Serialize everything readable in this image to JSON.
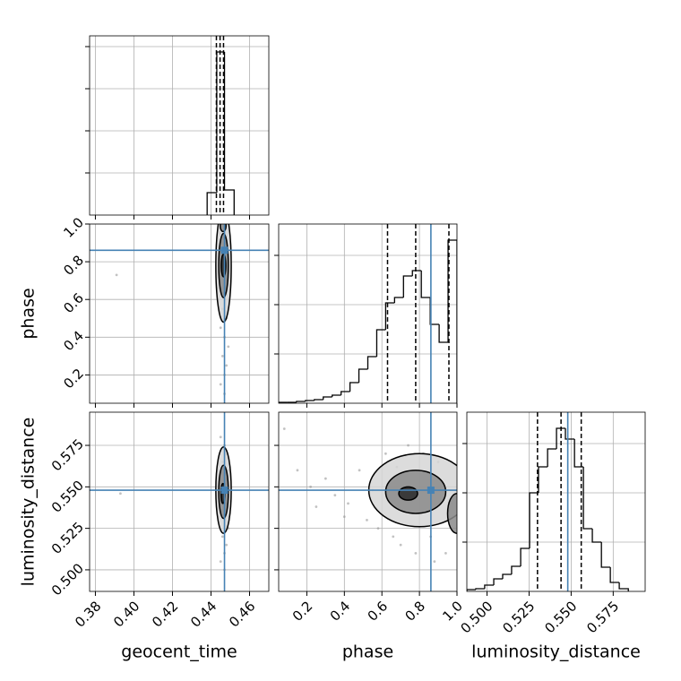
{
  "chart_data": [
    {
      "type": "histogram",
      "bins": [
        0.438,
        0.443,
        0.447,
        0.452
      ],
      "counts": [
        25,
        182,
        28
      ],
      "xlim": [
        0.377,
        0.47
      ],
      "ylim": [
        0,
        200
      ],
      "xticks": [
        0.38,
        {
          "value": 0.4,
          "label": "0.40"
        },
        0.42,
        0.44,
        0.46
      ],
      "yticks": [
        47,
        94,
        141,
        188
      ],
      "quantiles": [
        0.4428,
        0.4447,
        0.4465
      ],
      "grid": true,
      "color": "#000000"
    },
    {
      "type": "scatter",
      "xlim": [
        0.377,
        0.47
      ],
      "ylim": [
        0.05,
        1.0
      ],
      "xticks": [
        0.38,
        {
          "value": 0.4,
          "label": "0.40"
        },
        0.42,
        0.44,
        0.46
      ],
      "yticks": [
        0.2,
        0.4,
        0.6,
        0.8,
        {
          "value": 1,
          "label": "1.0"
        }
      ],
      "ylabel": "phase",
      "x": [
        0.445,
        0.447,
        0.448,
        0.446,
        0.449,
        0.444,
        0.447,
        0.446,
        0.448,
        0.445,
        0.447,
        0.449,
        0.446,
        0.448,
        0.447,
        0.445,
        0.446,
        0.448,
        0.391,
        0.447
      ],
      "y": [
        0.95,
        0.88,
        0.82,
        0.76,
        0.7,
        0.66,
        0.6,
        0.55,
        0.5,
        0.45,
        0.4,
        0.35,
        0.3,
        0.25,
        0.2,
        0.15,
        0.72,
        0.91,
        0.73,
        0.1
      ],
      "contours": [
        {
          "cx": 0.4465,
          "cy": 0.78,
          "rx": 0.004,
          "ry": 0.3
        },
        {
          "cx": 0.4465,
          "cy": 0.78,
          "rx": 0.0025,
          "ry": 0.17
        },
        {
          "cx": 0.4465,
          "cy": 0.78,
          "rx": 0.0012,
          "ry": 0.06
        },
        {
          "cx": 0.4463,
          "cy": 0.99,
          "rx": 0.0015,
          "ry": 0.03
        }
      ],
      "truth_x": 0.447,
      "truth_y": 0.861,
      "grid": true,
      "color": "#9a9a9a",
      "truth_color": "#4682b4"
    },
    {
      "type": "histogram",
      "bins": [
        0.05,
        0.0975,
        0.145,
        0.1925,
        0.24,
        0.2875,
        0.335,
        0.3825,
        0.43,
        0.4775,
        0.525,
        0.5725,
        0.62,
        0.6675,
        0.715,
        0.7625,
        0.81,
        0.8575,
        0.905,
        0.9525,
        1.0
      ],
      "counts": [
        1,
        1,
        2,
        3,
        4,
        7,
        9,
        13,
        23,
        38,
        52,
        82,
        112,
        118,
        142,
        148,
        118,
        88,
        68,
        182
      ],
      "xlim": [
        0.05,
        1.0
      ],
      "ylim": [
        0,
        200
      ],
      "xticks": [
        0.2,
        0.4,
        0.6,
        0.8,
        {
          "value": 1,
          "label": "1.0"
        }
      ],
      "yticks": [
        55,
        110,
        165
      ],
      "quantiles": [
        0.63,
        0.78,
        0.957
      ],
      "truth": 0.861,
      "grid": true,
      "color": "#000000",
      "truth_color": "#4682b4"
    },
    {
      "type": "scatter",
      "xlim": [
        0.377,
        0.47
      ],
      "ylim": [
        0.487,
        0.595
      ],
      "xticks": [
        0.38,
        {
          "value": 0.4,
          "label": "0.40"
        },
        0.42,
        0.44,
        0.46
      ],
      "yticks": [
        {
          "value": 0.5,
          "label": "0.500"
        },
        0.525,
        {
          "value": 0.55,
          "label": "0.550"
        },
        0.575
      ],
      "xlabel": "geocent_time",
      "ylabel": "luminosity_distance",
      "x": [
        0.445,
        0.447,
        0.448,
        0.446,
        0.449,
        0.444,
        0.447,
        0.446,
        0.448,
        0.445,
        0.447,
        0.449,
        0.446,
        0.448,
        0.447,
        0.445,
        0.446,
        0.448,
        0.393,
        0.447
      ],
      "y": [
        0.58,
        0.575,
        0.57,
        0.565,
        0.56,
        0.555,
        0.55,
        0.545,
        0.54,
        0.535,
        0.53,
        0.525,
        0.52,
        0.515,
        0.51,
        0.505,
        0.548,
        0.552,
        0.546,
        0.5
      ],
      "contours": [
        {
          "cx": 0.4465,
          "cy": 0.548,
          "rx": 0.004,
          "ry": 0.026
        },
        {
          "cx": 0.4465,
          "cy": 0.547,
          "rx": 0.0025,
          "ry": 0.016
        },
        {
          "cx": 0.4462,
          "cy": 0.546,
          "rx": 0.001,
          "ry": 0.006
        }
      ],
      "truth_x": 0.447,
      "truth_y": 0.548,
      "grid": true,
      "color": "#9a9a9a",
      "truth_color": "#4682b4"
    },
    {
      "type": "scatter",
      "xlim": [
        0.05,
        1.0
      ],
      "ylim": [
        0.487,
        0.595
      ],
      "xticks": [
        0.2,
        0.4,
        0.6,
        0.8,
        {
          "value": 1,
          "label": "1.0"
        }
      ],
      "yticks": [
        {
          "value": 0.5,
          "label": "0.500"
        },
        0.525,
        {
          "value": 0.55,
          "label": "0.550"
        },
        0.575
      ],
      "xlabel": "phase",
      "x": [
        0.08,
        0.15,
        0.22,
        0.3,
        0.35,
        0.42,
        0.48,
        0.52,
        0.58,
        0.62,
        0.66,
        0.7,
        0.74,
        0.78,
        0.82,
        0.86,
        0.9,
        0.94,
        0.97,
        0.55,
        0.4,
        0.68,
        0.88,
        0.25
      ],
      "y": [
        0.585,
        0.56,
        0.55,
        0.555,
        0.545,
        0.54,
        0.56,
        0.53,
        0.525,
        0.57,
        0.52,
        0.515,
        0.575,
        0.51,
        0.57,
        0.52,
        0.565,
        0.51,
        0.54,
        0.548,
        0.532,
        0.562,
        0.505,
        0.538
      ],
      "contours": [
        {
          "cx": 0.8,
          "cy": 0.548,
          "rx": 0.27,
          "ry": 0.022
        },
        {
          "cx": 0.78,
          "cy": 0.547,
          "rx": 0.16,
          "ry": 0.013
        },
        {
          "cx": 0.74,
          "cy": 0.546,
          "rx": 0.05,
          "ry": 0.004
        },
        {
          "cx": 1.0,
          "cy": 0.534,
          "rx": 0.05,
          "ry": 0.012
        }
      ],
      "truth_x": 0.861,
      "truth_y": 0.548,
      "grid": true,
      "color": "#9a9a9a",
      "truth_color": "#4682b4"
    },
    {
      "type": "histogram",
      "bins": [
        0.488,
        0.4933,
        0.4986,
        0.504,
        0.5093,
        0.5146,
        0.52,
        0.5253,
        0.5306,
        0.536,
        0.5413,
        0.5466,
        0.552,
        0.5573,
        0.5626,
        0.568,
        0.5733,
        0.5786,
        0.584
      ],
      "counts": [
        2,
        3,
        7,
        14,
        19,
        28,
        48,
        110,
        139,
        159,
        182,
        170,
        139,
        70,
        55,
        27,
        10,
        3
      ],
      "xlim": [
        0.488,
        0.594
      ],
      "ylim": [
        0,
        200
      ],
      "xticks": [
        {
          "value": 0.5,
          "label": "0.500"
        },
        0.525,
        {
          "value": 0.55,
          "label": "0.550"
        },
        0.575
      ],
      "yticks": [
        55,
        110,
        165
      ],
      "xlabel": "luminosity_distance",
      "quantiles": [
        0.53,
        0.544,
        0.556
      ],
      "truth": 0.548,
      "grid": true,
      "color": "#000000",
      "truth_color": "#4682b4"
    }
  ]
}
